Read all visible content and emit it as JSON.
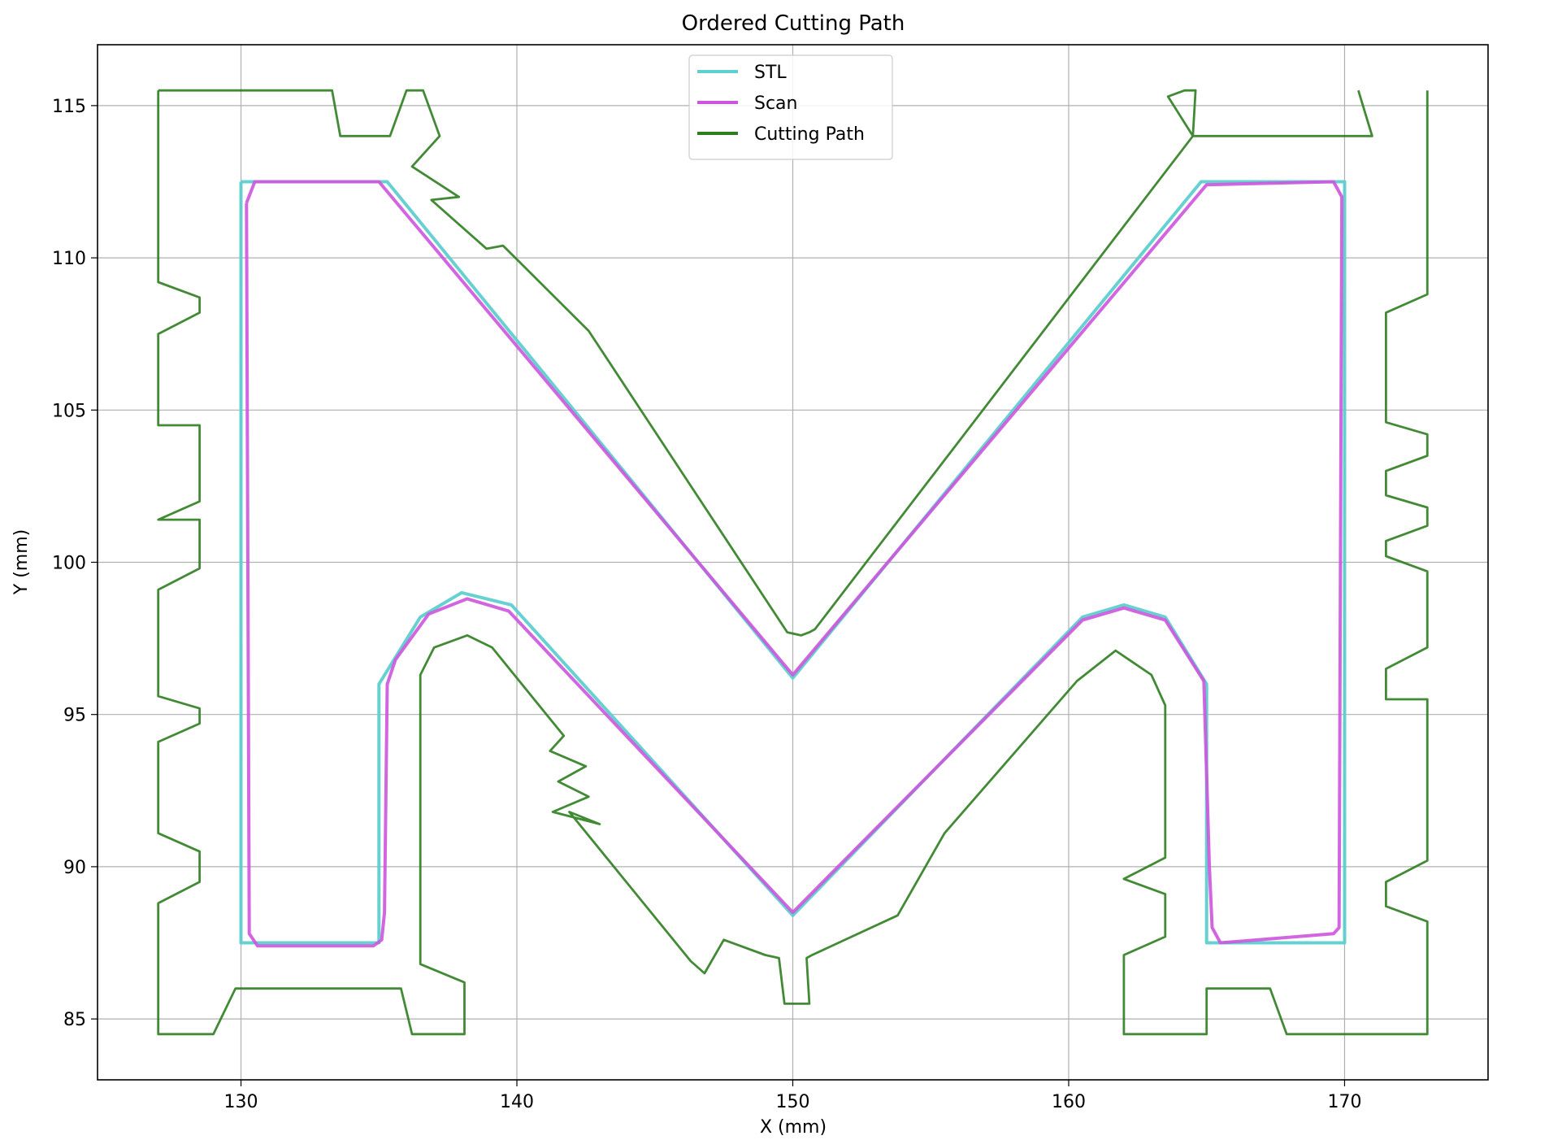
{
  "chart_data": {
    "type": "line",
    "title": "Ordered Cutting Path",
    "xlabel": "X (mm)",
    "ylabel": "Y (mm)",
    "xlim": [
      124.8,
      175.2
    ],
    "ylim": [
      83.0,
      117.0
    ],
    "xticks": [
      130,
      140,
      150,
      160,
      170
    ],
    "yticks": [
      85,
      90,
      95,
      100,
      105,
      110,
      115
    ],
    "grid": true,
    "legend": {
      "position": "top-center",
      "entries": [
        {
          "label": "STL",
          "color": "#5fcfcf"
        },
        {
          "label": "Scan",
          "color": "#cc55dd"
        },
        {
          "label": "Cutting Path",
          "color": "#2e7d1f"
        }
      ]
    },
    "series": [
      {
        "name": "STL",
        "color": "#5fcfcf",
        "x": [
          130,
          135.3,
          150,
          164.8,
          170,
          170,
          165,
          165,
          163.5,
          162,
          160.5,
          150,
          139.8,
          138,
          136.5,
          135,
          135,
          130,
          130
        ],
        "y": [
          112.5,
          112.5,
          96.2,
          112.5,
          112.5,
          87.5,
          87.5,
          96,
          98.2,
          98.6,
          98.2,
          88.4,
          98.6,
          99,
          98.2,
          96,
          87.5,
          87.5,
          112.5
        ]
      },
      {
        "name": "Scan",
        "color": "#cc55dd",
        "x": [
          130.2,
          130.5,
          135,
          150,
          165,
          169.6,
          169.9,
          169.8,
          169.6,
          165.5,
          165.2,
          165.1,
          164.9,
          163.5,
          162,
          160.5,
          150,
          139.7,
          138.2,
          136.8,
          135.6,
          135.3,
          135.2,
          135.1,
          134.8,
          130.6,
          130.3,
          130.2
        ],
        "y": [
          111.8,
          112.5,
          112.5,
          96.3,
          112.4,
          112.5,
          112,
          88,
          87.8,
          87.5,
          88,
          90,
          96.1,
          98.1,
          98.5,
          98.1,
          88.5,
          98.4,
          98.8,
          98.3,
          96.8,
          96,
          88.5,
          87.6,
          87.4,
          87.4,
          87.8,
          111.8
        ]
      },
      {
        "name": "Cutting Path",
        "color": "#2e7d1f",
        "segments": [
          {
            "x": [
              127,
              127,
              128.5,
              128.5,
              127,
              127,
              128.5,
              128.5,
              127,
              128.5,
              128.5,
              127,
              127,
              128.5,
              128.5,
              127,
              127,
              128.5,
              128.5,
              127,
              127,
              129,
              129.8,
              135.8,
              136.2,
              138.1,
              138.1,
              136.5,
              136.5,
              137,
              138.2,
              139.1,
              141.7,
              141.2,
              142.5,
              141.5,
              142.6,
              141.3,
              143,
              141.9,
              146.3,
              146.8,
              147.5,
              149,
              149.5,
              149.7,
              150.6,
              150.5,
              150.7,
              153.8,
              155.5,
              160.3,
              161.7,
              163,
              163.5,
              163.5,
              162,
              163.5,
              163.5,
              162,
              162,
              165,
              165,
              167.3,
              167.9,
              173,
              173,
              171.5,
              171.5,
              173,
              173,
              171.5,
              171.5,
              173,
              173,
              171.5,
              171.5,
              173,
              173,
              171.5,
              171.5,
              173,
              173,
              171.5,
              171.5,
              173,
              173
            ],
            "y": [
              115.5,
              109.2,
              108.7,
              108.2,
              107.5,
              104.5,
              104.5,
              102,
              101.4,
              101.4,
              99.8,
              99.1,
              95.6,
              95.2,
              94.7,
              94.1,
              91.1,
              90.5,
              89.5,
              88.8,
              84.5,
              84.5,
              86,
              86,
              84.5,
              84.5,
              86.2,
              86.8,
              96.3,
              97.2,
              97.6,
              97.2,
              94.3,
              93.8,
              93.3,
              92.8,
              92.3,
              91.8,
              91.4,
              91.8,
              86.9,
              86.5,
              87.6,
              87.1,
              87,
              85.5,
              85.5,
              87,
              87.1,
              88.4,
              91.1,
              96.1,
              97.1,
              96.3,
              95.3,
              90.3,
              89.6,
              89.1,
              87.7,
              87.1,
              84.5,
              84.5,
              86,
              86,
              84.5,
              84.5,
              88.2,
              88.7,
              89.5,
              90.2,
              95.5,
              95.5,
              96.5,
              97.2,
              99.7,
              100.2,
              100.7,
              101.2,
              101.8,
              102.2,
              103,
              103.5,
              104.2,
              104.6,
              108.2,
              108.8,
              115.5
            ]
          },
          {
            "x": [
              127,
              133.3,
              133.6,
              135.4,
              136,
              136.6,
              137.2,
              136.2,
              137.9,
              136.9,
              138.9,
              139.5,
              142.6,
              149.8,
              150.3,
              150.6,
              150.8,
              164.5,
              163.6,
              164.2,
              164.6,
              164.5,
              167.8,
              171,
              170.5
            ],
            "y": [
              115.5,
              115.5,
              114,
              114,
              115.5,
              115.5,
              114,
              113,
              112,
              111.9,
              110.3,
              110.4,
              107.6,
              97.7,
              97.6,
              97.7,
              97.8,
              114,
              115.3,
              115.5,
              115.5,
              114,
              114,
              114,
              115.5
            ]
          }
        ]
      }
    ]
  }
}
